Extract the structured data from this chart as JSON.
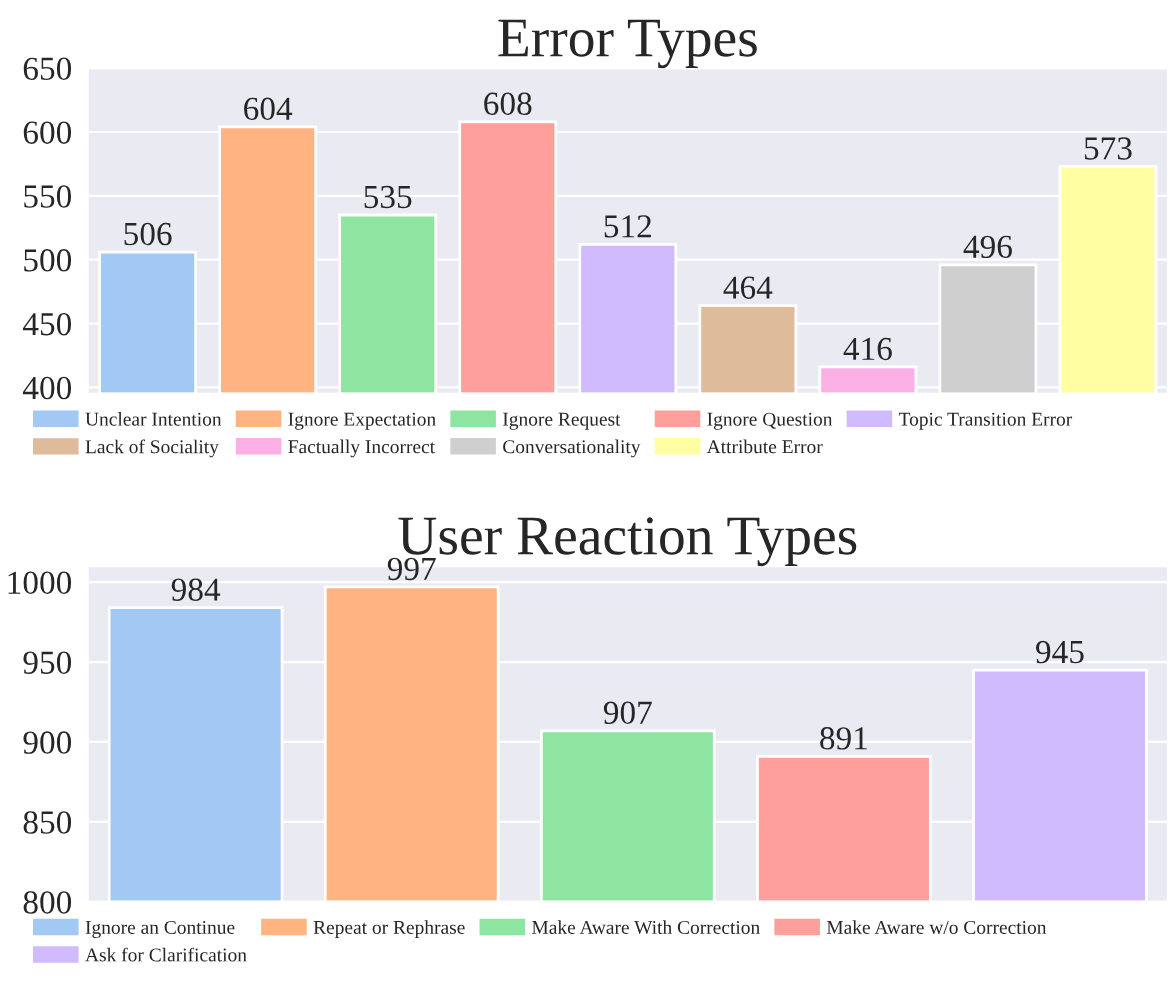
{
  "chart_data": [
    {
      "type": "bar",
      "title": "Error Types",
      "categories": [
        null,
        null,
        null,
        null,
        null,
        null,
        null,
        null,
        null
      ],
      "series": [
        {
          "name": "Unclear Intention",
          "color": "#a1c9f4",
          "values": [
            506,
            null,
            null,
            null,
            null,
            null,
            null,
            null,
            null
          ]
        },
        {
          "name": "Ignore Expectation",
          "color": "#ffb482",
          "values": [
            null,
            604,
            null,
            null,
            null,
            null,
            null,
            null,
            null
          ]
        },
        {
          "name": "Ignore Request",
          "color": "#8de5a1",
          "values": [
            null,
            null,
            535,
            null,
            null,
            null,
            null,
            null,
            null
          ]
        },
        {
          "name": "Ignore Question",
          "color": "#ff9f9b",
          "values": [
            null,
            null,
            null,
            608,
            null,
            null,
            null,
            null,
            null
          ]
        },
        {
          "name": "Topic Transition Error",
          "color": "#d0bbff",
          "values": [
            null,
            null,
            null,
            null,
            512,
            null,
            null,
            null,
            null
          ]
        },
        {
          "name": "Lack of Sociality",
          "color": "#debb9b",
          "values": [
            null,
            null,
            null,
            null,
            null,
            464,
            null,
            null,
            null
          ]
        },
        {
          "name": "Factually Incorrect",
          "color": "#fab0e4",
          "values": [
            null,
            null,
            null,
            null,
            null,
            null,
            416,
            null,
            null
          ]
        },
        {
          "name": "Conversationality",
          "color": "#cfcfcf",
          "values": [
            null,
            null,
            null,
            null,
            null,
            null,
            null,
            496,
            null
          ]
        },
        {
          "name": "Attribute Error",
          "color": "#fffea3",
          "values": [
            null,
            null,
            null,
            null,
            null,
            null,
            null,
            null,
            573
          ]
        }
      ],
      "ylim": [
        395,
        650
      ],
      "yticks": [
        400,
        450,
        500,
        550,
        600,
        650
      ],
      "grid": "y",
      "data_labels": true,
      "legend": "bottom",
      "tick_labels": "y"
    },
    {
      "type": "bar",
      "title": "User Reaction Types",
      "categories": [
        null,
        null,
        null,
        null,
        null
      ],
      "series": [
        {
          "name": "Ignore an Continue",
          "color": "#a1c9f4",
          "values": [
            984,
            null,
            null,
            null,
            null
          ]
        },
        {
          "name": "Repeat or Rephrase",
          "color": "#ffb482",
          "values": [
            null,
            997,
            null,
            null,
            null
          ]
        },
        {
          "name": "Make Aware With Correction",
          "color": "#8de5a1",
          "values": [
            null,
            null,
            907,
            null,
            null
          ]
        },
        {
          "name": "Make Aware w/o Correction",
          "color": "#ff9f9b",
          "values": [
            null,
            null,
            null,
            891,
            null
          ]
        },
        {
          "name": "Ask for Clarification",
          "color": "#d0bbff",
          "values": [
            null,
            null,
            null,
            null,
            945
          ]
        }
      ],
      "ylim": [
        800,
        1010
      ],
      "yticks": [
        800,
        850,
        900,
        950,
        1000
      ],
      "grid": "y",
      "data_labels": true,
      "legend": "bottom",
      "tick_labels": "y"
    }
  ]
}
